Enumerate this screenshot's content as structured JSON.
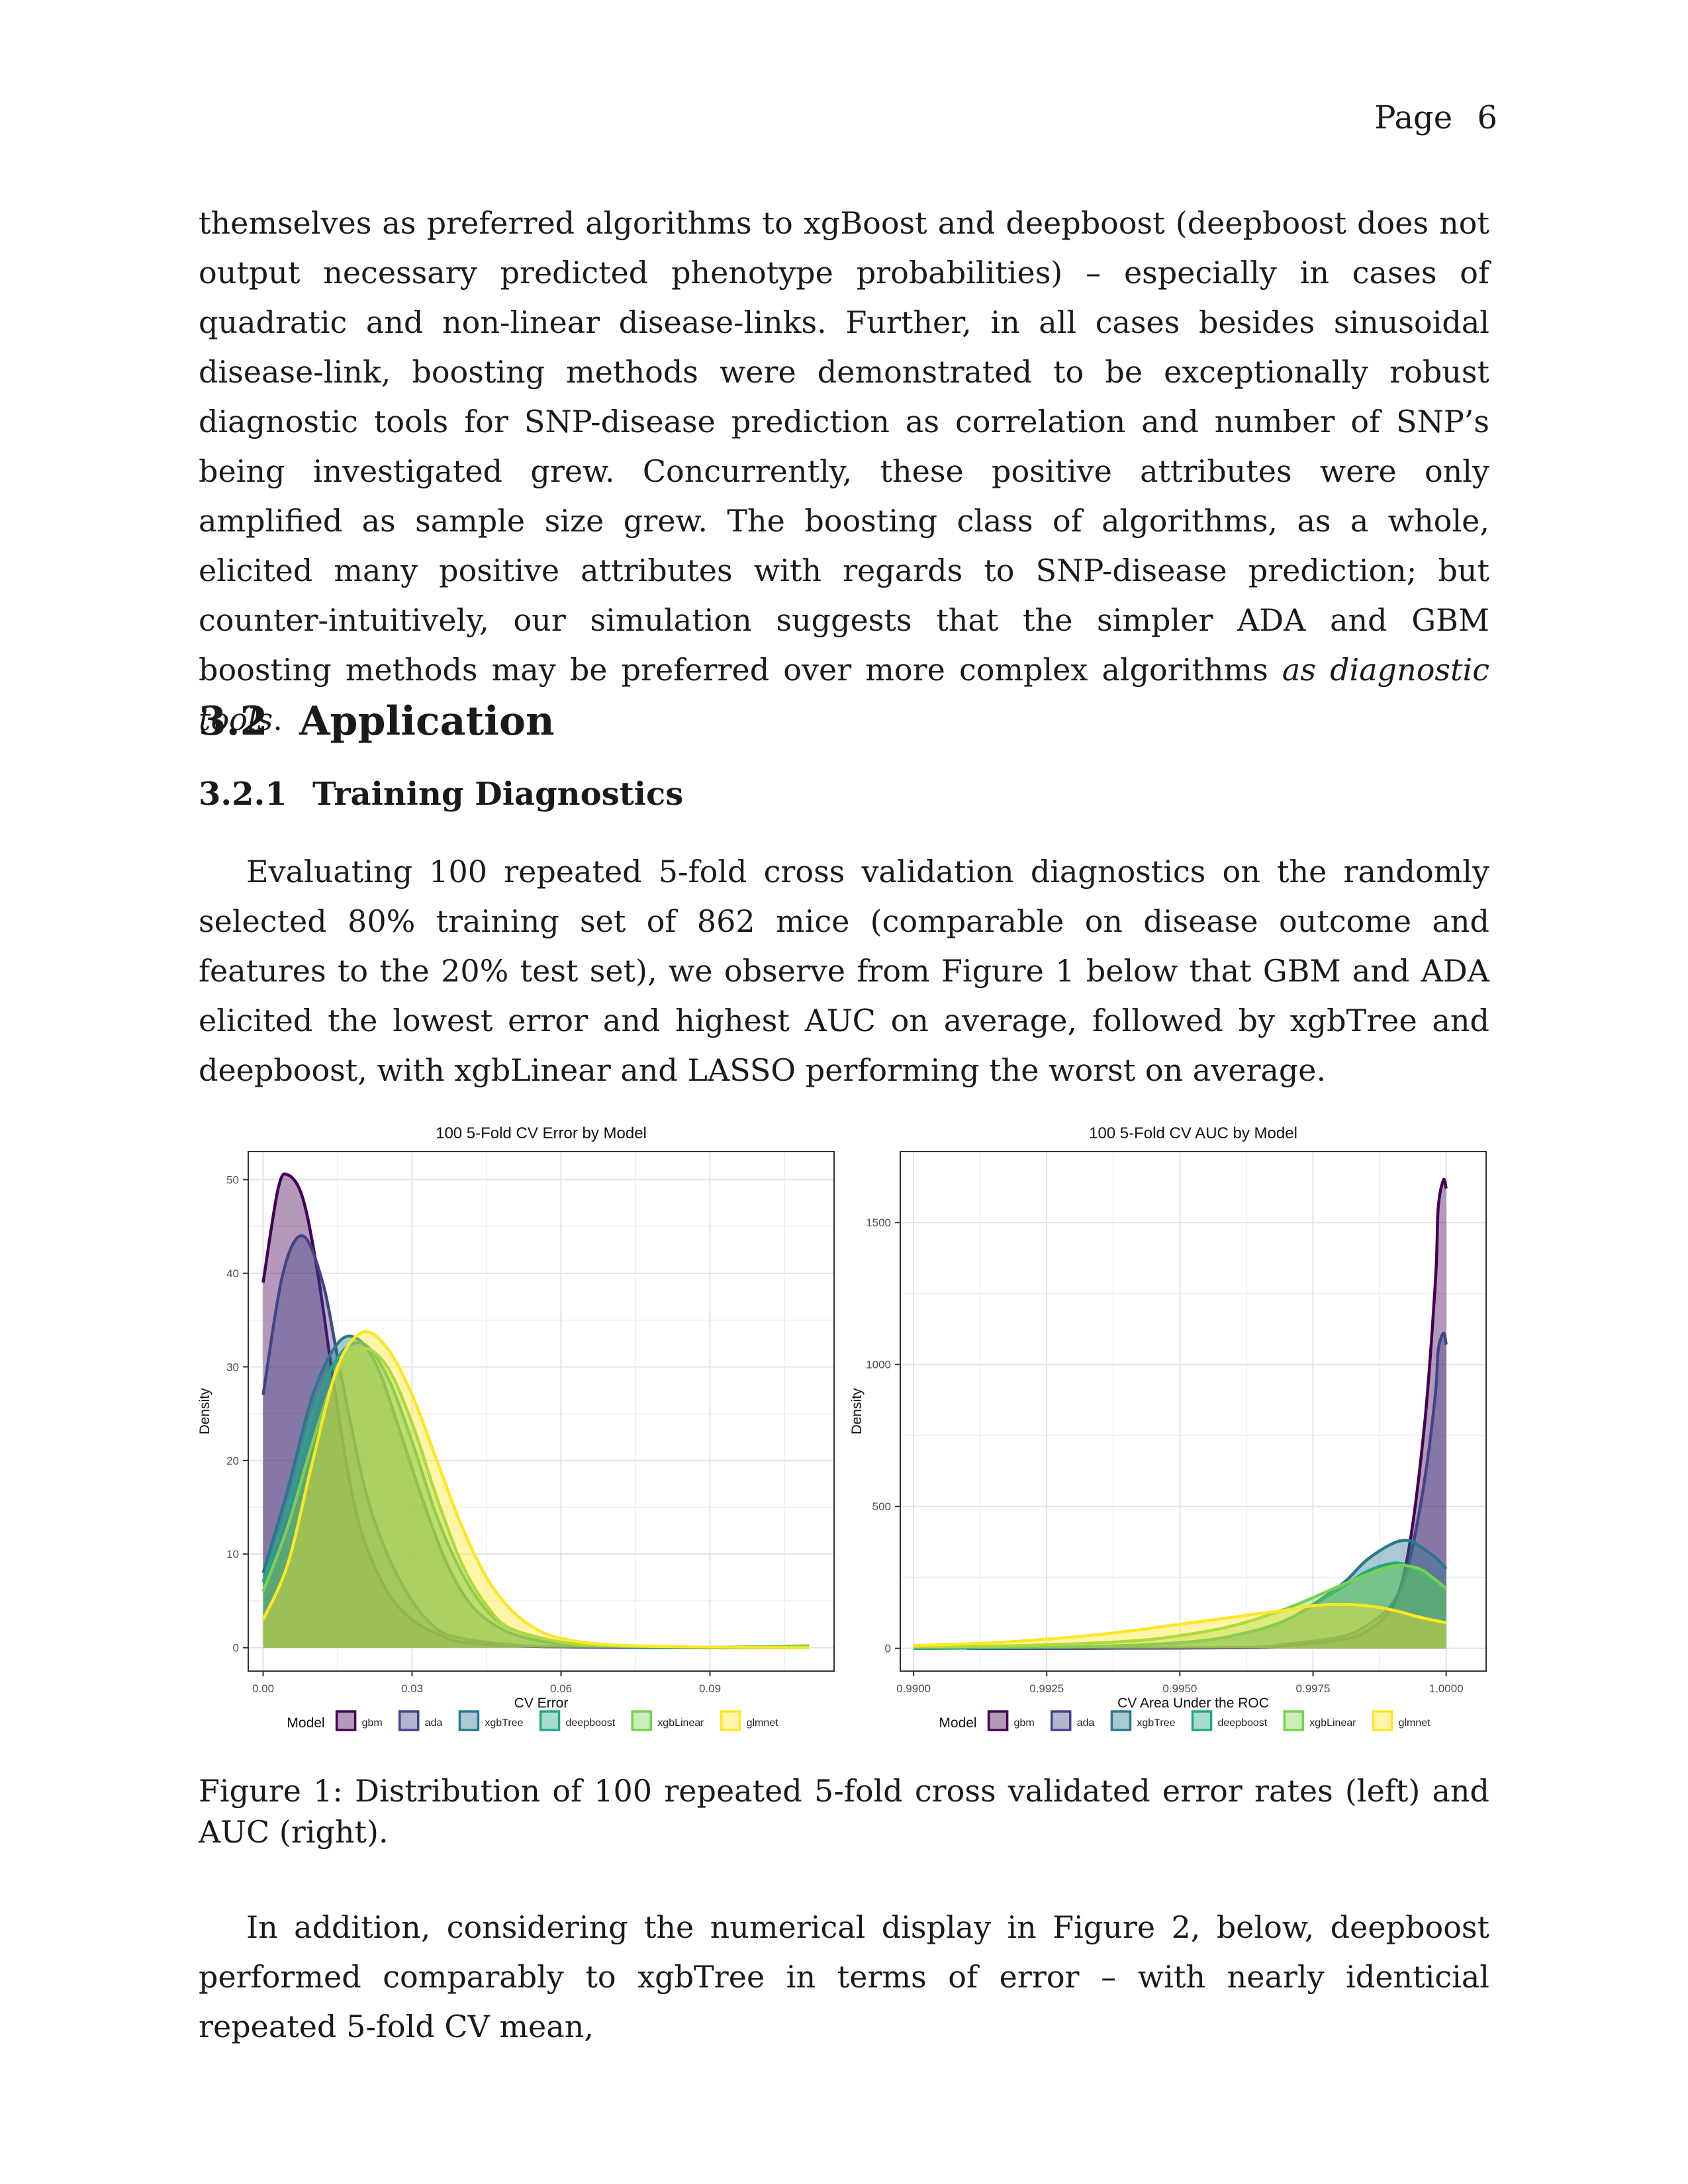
{
  "header": {
    "label": "Page",
    "number": "6"
  },
  "paragraphs": {
    "p1": "themselves as preferred algorithms to xgBoost and deepboost (deepboost does not output necessary predicted phenotype probabilities) – especially in cases of quadratic and non-linear disease-links. Further, in all cases besides sinusoidal disease-link, boosting methods were demonstrated to be exceptionally robust diagnostic tools for SNP-disease prediction as correlation and number of SNP’s being investigated grew. Concurrently, these positive attributes were only amplified as sample size grew. The boosting class of algorithms, as a whole, elicited many positive attributes with regards to SNP-disease prediction; but counter-intuitively, our simulation suggests that the simpler ADA and GBM boosting methods may be preferred over more complex algorithms",
    "p1_emph": "as diagnostic tools",
    "p1_end": ".",
    "p2": "Evaluating 100 repeated 5-fold cross validation diagnostics on the randomly selected 80% training set of 862 mice (comparable on disease outcome and features to the 20% test set), we observe from Figure 1 below that GBM and ADA elicited the lowest error and highest AUC on average, followed by xgbTree and deepboost, with xgbLinear and LASSO performing the worst on average.",
    "p3": "In addition, considering the numerical display in Figure 2, below, deepboost performed comparably to xgbTree in terms of error – with nearly identicial repeated 5-fold CV mean,"
  },
  "section": {
    "number": "3.2",
    "title": "Application"
  },
  "subsection": {
    "number": "3.2.1",
    "title": "Training Diagnostics"
  },
  "caption": "Figure 1: Distribution of 100 repeated 5-fold cross validated error rates (left) and AUC (right).",
  "colors": {
    "gbm": "#440154",
    "ada": "#414487",
    "xgbTree": "#2A788E",
    "deepboost": "#22A884",
    "xgbLinear": "#7AD151",
    "glmnet": "#FDE725"
  },
  "chart_data": [
    {
      "type": "area",
      "kind": "density",
      "title": "100 5-Fold CV Error by Model",
      "xlabel": "CV Error",
      "ylabel": "Density",
      "xlim": [
        -0.003,
        0.115
      ],
      "ylim": [
        -2.5,
        53
      ],
      "xticks": [
        0.0,
        0.03,
        0.06,
        0.09
      ],
      "xtick_labels": [
        "0.00",
        "0.03",
        "0.06",
        "0.09"
      ],
      "yticks": [
        0,
        10,
        20,
        30,
        40,
        50
      ],
      "ytick_labels": [
        "0",
        "10",
        "20",
        "30",
        "40",
        "50"
      ],
      "grid": true,
      "legend_position": "bottom",
      "legend_title": "Model",
      "series": [
        {
          "name": "gbm",
          "x": [
            0.0,
            0.003,
            0.005,
            0.008,
            0.011,
            0.014,
            0.017,
            0.02,
            0.025,
            0.03,
            0.035,
            0.04,
            0.05,
            0.06,
            0.08,
            0.11
          ],
          "y": [
            39,
            49,
            50.5,
            48,
            40,
            29,
            19,
            12,
            6,
            3,
            1.5,
            0.6,
            0.2,
            0.1,
            0.0,
            0.0
          ]
        },
        {
          "name": "ada",
          "x": [
            0.0,
            0.004,
            0.008,
            0.012,
            0.015,
            0.018,
            0.021,
            0.025,
            0.03,
            0.035,
            0.04,
            0.05,
            0.06,
            0.08,
            0.11
          ],
          "y": [
            27,
            40,
            44,
            39,
            31,
            23,
            16,
            10,
            5,
            2,
            1,
            0.3,
            0.1,
            0.0,
            0.0
          ]
        },
        {
          "name": "xgbTree",
          "x": [
            0.0,
            0.005,
            0.01,
            0.015,
            0.019,
            0.023,
            0.027,
            0.032,
            0.037,
            0.042,
            0.048,
            0.055,
            0.065,
            0.08,
            0.11
          ],
          "y": [
            8,
            17,
            27,
            32.5,
            33,
            30,
            24,
            16,
            9,
            4.5,
            2,
            0.8,
            0.2,
            0.05,
            0.0
          ]
        },
        {
          "name": "deepboost",
          "x": [
            0.0,
            0.005,
            0.01,
            0.015,
            0.02,
            0.025,
            0.03,
            0.035,
            0.04,
            0.045,
            0.05,
            0.06,
            0.07,
            0.08,
            0.11
          ],
          "y": [
            7,
            15,
            25,
            31,
            32.5,
            29,
            22,
            14,
            8,
            4,
            2,
            0.6,
            0.2,
            0.05,
            0.0
          ]
        },
        {
          "name": "xgbLinear",
          "x": [
            0.0,
            0.005,
            0.01,
            0.015,
            0.02,
            0.025,
            0.03,
            0.035,
            0.04,
            0.045,
            0.05,
            0.06,
            0.07,
            0.09,
            0.11
          ],
          "y": [
            6,
            13,
            22,
            29.5,
            32,
            30,
            24,
            16,
            9,
            4.5,
            2,
            0.6,
            0.2,
            0.05,
            0.2
          ]
        },
        {
          "name": "glmnet",
          "x": [
            0.0,
            0.005,
            0.01,
            0.015,
            0.02,
            0.025,
            0.03,
            0.035,
            0.04,
            0.045,
            0.05,
            0.055,
            0.06,
            0.07,
            0.09,
            0.11
          ],
          "y": [
            3,
            9,
            20,
            30,
            33.7,
            32,
            27,
            20,
            13,
            7.5,
            4,
            2,
            1,
            0.3,
            0.05,
            0.0
          ]
        }
      ]
    },
    {
      "type": "area",
      "kind": "density",
      "title": "100 5-Fold CV AUC by Model",
      "xlabel": "CV Area Under the ROC",
      "ylabel": "Density",
      "xlim": [
        0.98975,
        1.00075
      ],
      "ylim": [
        -80,
        1750
      ],
      "xticks": [
        0.99,
        0.9925,
        0.995,
        0.9975,
        1.0
      ],
      "xtick_labels": [
        "0.9900",
        "0.9925",
        "0.9950",
        "0.9975",
        "1.0000"
      ],
      "yticks": [
        0,
        500,
        1000,
        1500
      ],
      "ytick_labels": [
        "0",
        "500",
        "1000",
        "1500"
      ],
      "grid": true,
      "legend_position": "bottom",
      "legend_title": "Model",
      "series": [
        {
          "name": "gbm",
          "x": [
            0.991,
            0.996,
            0.997,
            0.998,
            0.9985,
            0.999,
            0.9993,
            0.9996,
            0.9998,
            0.99985,
            0.99995,
            1.0
          ],
          "y": [
            0,
            2,
            10,
            30,
            60,
            150,
            350,
            800,
            1300,
            1550,
            1650,
            1620
          ]
        },
        {
          "name": "ada",
          "x": [
            0.991,
            0.996,
            0.997,
            0.998,
            0.9985,
            0.999,
            0.9993,
            0.9996,
            0.9998,
            0.99985,
            0.99995,
            1.0
          ],
          "y": [
            0,
            3,
            15,
            40,
            80,
            160,
            300,
            600,
            900,
            1050,
            1110,
            1070
          ]
        },
        {
          "name": "xgbTree",
          "x": [
            0.99,
            0.993,
            0.995,
            0.996,
            0.997,
            0.998,
            0.9985,
            0.999,
            0.9993,
            0.9995,
            0.9998,
            1.0
          ],
          "y": [
            0,
            5,
            20,
            45,
            100,
            220,
            310,
            370,
            380,
            360,
            320,
            280
          ]
        },
        {
          "name": "deepboost",
          "x": [
            0.99,
            0.993,
            0.995,
            0.996,
            0.997,
            0.998,
            0.9985,
            0.999,
            0.9993,
            0.9995,
            0.9998,
            1.0
          ],
          "y": [
            0,
            5,
            20,
            45,
            100,
            210,
            270,
            300,
            290,
            265,
            235,
            210
          ]
        },
        {
          "name": "xgbLinear",
          "x": [
            0.99,
            0.992,
            0.994,
            0.995,
            0.996,
            0.997,
            0.998,
            0.9985,
            0.999,
            0.9993,
            0.9996,
            1.0
          ],
          "y": [
            5,
            10,
            25,
            45,
            80,
            140,
            220,
            260,
            290,
            290,
            270,
            210
          ]
        },
        {
          "name": "glmnet",
          "x": [
            0.99,
            0.9915,
            0.993,
            0.994,
            0.995,
            0.996,
            0.997,
            0.9975,
            0.998,
            0.9985,
            0.999,
            0.9995,
            1.0
          ],
          "y": [
            10,
            20,
            40,
            60,
            85,
            110,
            135,
            150,
            155,
            150,
            135,
            110,
            90
          ]
        }
      ]
    }
  ]
}
